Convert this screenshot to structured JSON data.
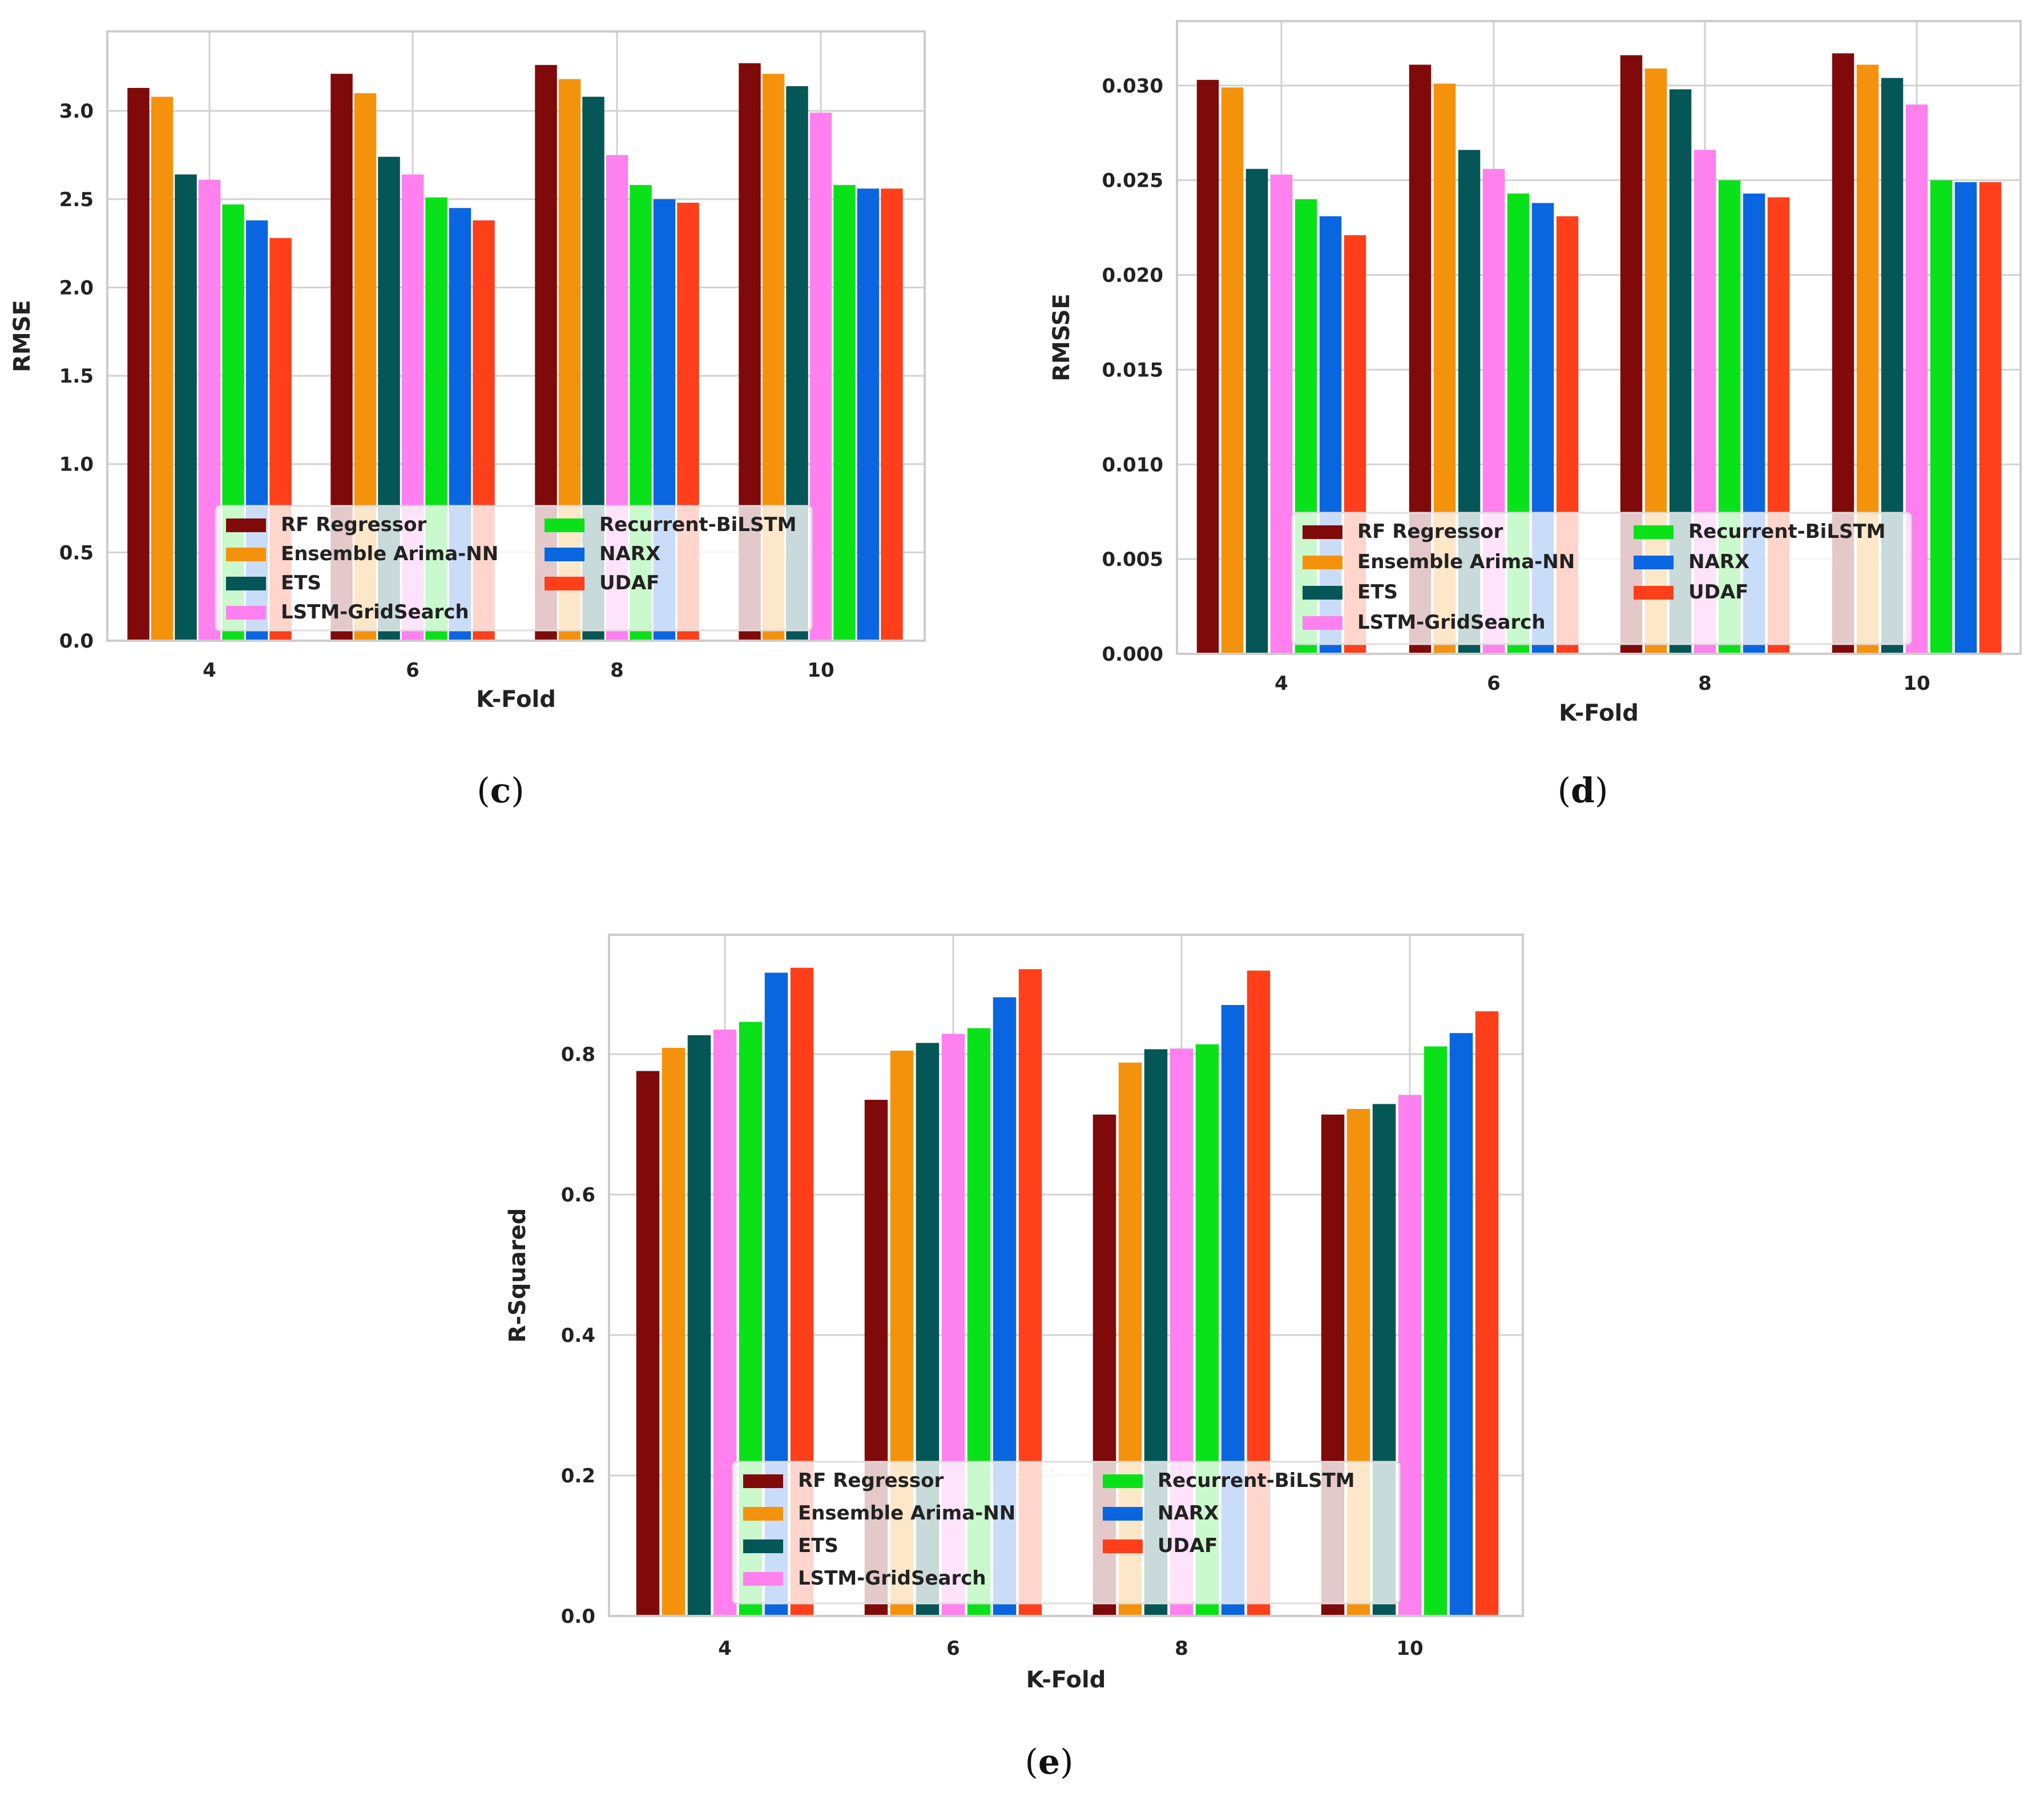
{
  "series_names": [
    "RF Regressor",
    "Ensemble Arima-NN",
    "ETS",
    "LSTM-GridSearch",
    "Recurrent-BiLSTM",
    "NARX",
    "UDAF"
  ],
  "colors": [
    "#800a0a",
    "#f5920c",
    "#055656",
    "#ff80ee",
    "#09e219",
    "#0a66e0",
    "#ff3f1a"
  ],
  "chart_data": [
    {
      "id": "c",
      "type": "bar",
      "caption": {
        "label": "c"
      },
      "title": "",
      "xlabel": "K-Fold",
      "ylabel": "RMSE",
      "categories": [
        "4",
        "6",
        "8",
        "10"
      ],
      "ylim": [
        0,
        3.45
      ],
      "yticks": [
        "0.0",
        "0.5",
        "1.0",
        "1.5",
        "2.0",
        "2.5",
        "3.0"
      ],
      "grid": true,
      "legend": "lower-center",
      "series": [
        {
          "name": "RF Regressor",
          "values": [
            3.13,
            3.21,
            3.26,
            3.27
          ]
        },
        {
          "name": "Ensemble Arima-NN",
          "values": [
            3.08,
            3.1,
            3.18,
            3.21
          ]
        },
        {
          "name": "ETS",
          "values": [
            2.64,
            2.74,
            3.08,
            3.14
          ]
        },
        {
          "name": "LSTM-GridSearch",
          "values": [
            2.61,
            2.64,
            2.75,
            2.99
          ]
        },
        {
          "name": "Recurrent-BiLSTM",
          "values": [
            2.47,
            2.51,
            2.58,
            2.58
          ]
        },
        {
          "name": "NARX",
          "values": [
            2.38,
            2.45,
            2.5,
            2.56
          ]
        },
        {
          "name": "UDAF",
          "values": [
            2.28,
            2.38,
            2.48,
            2.56
          ]
        }
      ]
    },
    {
      "id": "d",
      "type": "bar",
      "caption": {
        "label": "d"
      },
      "title": "",
      "xlabel": "K-Fold",
      "ylabel": "RMSSE",
      "categories": [
        "4",
        "6",
        "8",
        "10"
      ],
      "ylim": [
        0,
        0.0334
      ],
      "yticks": [
        "0.000",
        "0.005",
        "0.010",
        "0.015",
        "0.020",
        "0.025",
        "0.030"
      ],
      "grid": true,
      "legend": "lower-center",
      "series": [
        {
          "name": "RF Regressor",
          "values": [
            0.0303,
            0.0311,
            0.0316,
            0.0317
          ]
        },
        {
          "name": "Ensemble Arima-NN",
          "values": [
            0.0299,
            0.0301,
            0.0309,
            0.0311
          ]
        },
        {
          "name": "ETS",
          "values": [
            0.0256,
            0.0266,
            0.0298,
            0.0304
          ]
        },
        {
          "name": "LSTM-GridSearch",
          "values": [
            0.0253,
            0.0256,
            0.0266,
            0.029
          ]
        },
        {
          "name": "Recurrent-BiLSTM",
          "values": [
            0.024,
            0.0243,
            0.025,
            0.025
          ]
        },
        {
          "name": "NARX",
          "values": [
            0.0231,
            0.0238,
            0.0243,
            0.0249
          ]
        },
        {
          "name": "UDAF",
          "values": [
            0.0221,
            0.0231,
            0.0241,
            0.0249
          ]
        }
      ]
    },
    {
      "id": "e",
      "type": "bar",
      "caption": {
        "label": "e"
      },
      "title": "",
      "xlabel": "K-Fold",
      "ylabel": "R-Squared",
      "categories": [
        "4",
        "6",
        "8",
        "10"
      ],
      "ylim": [
        0,
        0.97
      ],
      "yticks": [
        "0.0",
        "0.2",
        "0.4",
        "0.6",
        "0.8"
      ],
      "grid": true,
      "legend": "lower-center",
      "series": [
        {
          "name": "RF Regressor",
          "values": [
            0.776,
            0.735,
            0.714,
            0.714
          ]
        },
        {
          "name": "Ensemble Arima-NN",
          "values": [
            0.809,
            0.805,
            0.788,
            0.722
          ]
        },
        {
          "name": "ETS",
          "values": [
            0.827,
            0.816,
            0.807,
            0.729
          ]
        },
        {
          "name": "LSTM-GridSearch",
          "values": [
            0.835,
            0.829,
            0.808,
            0.742
          ]
        },
        {
          "name": "Recurrent-BiLSTM",
          "values": [
            0.846,
            0.837,
            0.814,
            0.811
          ]
        },
        {
          "name": "NARX",
          "values": [
            0.916,
            0.881,
            0.87,
            0.83
          ]
        },
        {
          "name": "UDAF",
          "values": [
            0.923,
            0.921,
            0.919,
            0.861
          ]
        }
      ]
    }
  ]
}
